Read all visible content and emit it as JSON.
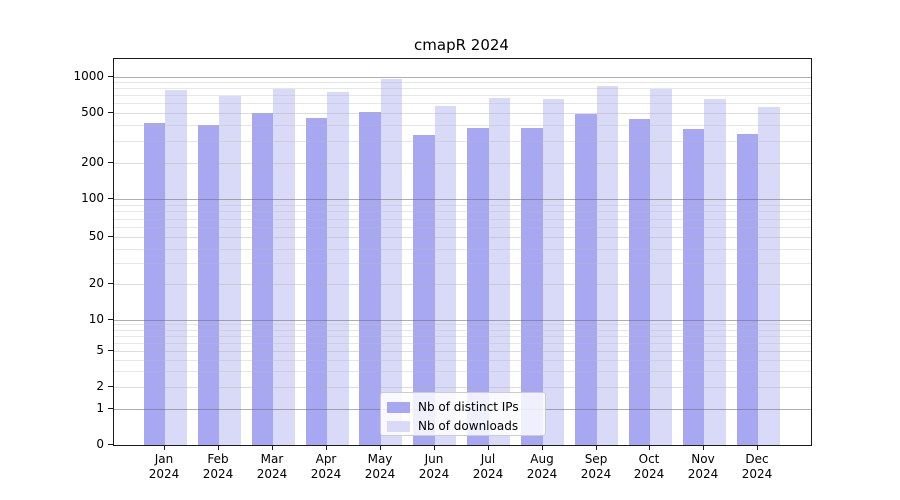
{
  "title": "cmapR 2024",
  "chart_data": {
    "type": "bar",
    "title": "cmapR 2024",
    "categories": [
      "Jan 2024",
      "Feb 2024",
      "Mar 2024",
      "Apr 2024",
      "May 2024",
      "Jun 2024",
      "Jul 2024",
      "Aug 2024",
      "Sep 2024",
      "Oct 2024",
      "Nov 2024",
      "Dec 2024"
    ],
    "series": [
      {
        "name": "Nb of distinct IPs",
        "color": "#a7a7f2",
        "values": [
          418,
          399,
          497,
          458,
          505,
          335,
          380,
          376,
          488,
          450,
          370,
          336
        ]
      },
      {
        "name": "Nb of downloads",
        "color": "#d9d9f8",
        "values": [
          770,
          695,
          795,
          745,
          955,
          575,
          665,
          648,
          838,
          795,
          650,
          560
        ]
      }
    ],
    "xlabel": "",
    "ylabel": "",
    "yticks": [
      0,
      1,
      2,
      5,
      10,
      20,
      50,
      100,
      200,
      500,
      1000
    ],
    "ytick_labels": [
      "0",
      "1",
      "2",
      "5",
      "10",
      "20",
      "50",
      "100",
      "200",
      "500",
      "1000"
    ],
    "yscale": "log-like with 0 baseline",
    "ylim": [
      0,
      1300
    ],
    "grid": true,
    "minor_gridlines": [
      3,
      4,
      6,
      7,
      8,
      9,
      30,
      40,
      60,
      70,
      80,
      90,
      300,
      400,
      600,
      700,
      800,
      900
    ],
    "legend_position": "lower center",
    "legend_items": [
      "Nb of distinct IPs",
      "Nb of downloads"
    ]
  },
  "colors": {
    "bar_dark": "#a7a7f2",
    "bar_light": "#d9d9f8",
    "major_grid": "#b5b5b5",
    "minor_grid": "#e9e9e9",
    "spine": "#1a1a1a",
    "legend_border": "#cccccc",
    "background": "#ffffff"
  }
}
